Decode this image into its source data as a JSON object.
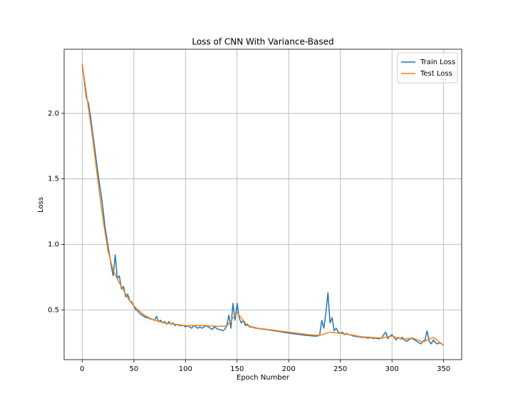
{
  "chart_data": {
    "type": "line",
    "title": "Loss of CNN With Variance-Based",
    "x_label": "Epoch Number",
    "y_label": "Loss",
    "xlim": [
      -17.5,
      367.5
    ],
    "ylim": [
      0.12,
      2.49
    ],
    "xticks": [
      0,
      50,
      100,
      150,
      200,
      250,
      300,
      350
    ],
    "yticks": [
      0.5,
      {
        "value": 1,
        "label": "1.0"
      },
      1.5,
      {
        "value": 2,
        "label": "2.0"
      }
    ],
    "grid": true,
    "legend": "upper right",
    "series": [
      {
        "name": "Train Loss",
        "color": "#1f77b4",
        "x": [
          0,
          2,
          4,
          6,
          8,
          10,
          12,
          14,
          16,
          18,
          20,
          22,
          24,
          26,
          28,
          30,
          32,
          34,
          36,
          38,
          40,
          42,
          44,
          46,
          48,
          50,
          52,
          54,
          56,
          58,
          60,
          62,
          64,
          66,
          68,
          70,
          72,
          74,
          76,
          78,
          80,
          82,
          84,
          86,
          88,
          90,
          92,
          94,
          96,
          98,
          100,
          102,
          104,
          106,
          108,
          110,
          112,
          114,
          116,
          118,
          120,
          122,
          124,
          126,
          128,
          130,
          132,
          134,
          136,
          138,
          140,
          142,
          144,
          146,
          148,
          150,
          152,
          154,
          156,
          158,
          160,
          162,
          164,
          166,
          168,
          170,
          172,
          174,
          176,
          178,
          180,
          182,
          184,
          186,
          188,
          190,
          192,
          194,
          196,
          198,
          200,
          202,
          204,
          206,
          208,
          210,
          212,
          214,
          216,
          218,
          220,
          222,
          224,
          226,
          228,
          230,
          232,
          234,
          236,
          238,
          240,
          242,
          244,
          246,
          248,
          250,
          252,
          254,
          256,
          258,
          260,
          262,
          264,
          266,
          268,
          270,
          272,
          274,
          276,
          278,
          280,
          282,
          284,
          286,
          288,
          290,
          292,
          294,
          296,
          298,
          300,
          302,
          304,
          306,
          308,
          310,
          312,
          314,
          316,
          318,
          320,
          322,
          324,
          326,
          328,
          330,
          332,
          334,
          336,
          338,
          340,
          342,
          344,
          346,
          348,
          350
        ],
        "values": [
          2.38,
          2.25,
          2.12,
          2.08,
          1.98,
          1.86,
          1.74,
          1.62,
          1.5,
          1.4,
          1.28,
          1.14,
          1.04,
          0.94,
          0.84,
          0.76,
          0.92,
          0.74,
          0.76,
          0.66,
          0.68,
          0.6,
          0.62,
          0.57,
          0.56,
          0.53,
          0.5,
          0.49,
          0.47,
          0.46,
          0.45,
          0.44,
          0.44,
          0.43,
          0.43,
          0.42,
          0.45,
          0.41,
          0.42,
          0.4,
          0.41,
          0.39,
          0.41,
          0.39,
          0.4,
          0.38,
          0.39,
          0.38,
          0.38,
          0.38,
          0.37,
          0.38,
          0.37,
          0.36,
          0.38,
          0.37,
          0.36,
          0.37,
          0.36,
          0.37,
          0.38,
          0.37,
          0.36,
          0.35,
          0.37,
          0.36,
          0.35,
          0.35,
          0.34,
          0.35,
          0.38,
          0.46,
          0.36,
          0.55,
          0.42,
          0.55,
          0.44,
          0.4,
          0.42,
          0.38,
          0.39,
          0.37,
          0.37,
          0.365,
          0.36,
          0.36,
          0.355,
          0.355,
          0.35,
          0.35,
          0.348,
          0.345,
          0.343,
          0.34,
          0.338,
          0.335,
          0.333,
          0.33,
          0.328,
          0.325,
          0.323,
          0.32,
          0.318,
          0.316,
          0.314,
          0.312,
          0.31,
          0.308,
          0.306,
          0.305,
          0.303,
          0.302,
          0.3,
          0.3,
          0.3,
          0.31,
          0.42,
          0.36,
          0.48,
          0.63,
          0.4,
          0.44,
          0.34,
          0.36,
          0.33,
          0.32,
          0.33,
          0.31,
          0.32,
          0.31,
          0.31,
          0.3,
          0.3,
          0.295,
          0.295,
          0.29,
          0.29,
          0.29,
          0.285,
          0.285,
          0.29,
          0.28,
          0.285,
          0.28,
          0.28,
          0.285,
          0.31,
          0.33,
          0.28,
          0.3,
          0.31,
          0.29,
          0.27,
          0.29,
          0.28,
          0.29,
          0.27,
          0.26,
          0.27,
          0.28,
          0.28,
          0.27,
          0.26,
          0.25,
          0.24,
          0.26,
          0.27,
          0.34,
          0.26,
          0.24,
          0.27,
          0.25,
          0.24,
          0.25,
          0.24,
          0.23
        ]
      },
      {
        "name": "Test Loss",
        "color": "#ff7f0e",
        "x": [
          0,
          5,
          10,
          15,
          20,
          25,
          30,
          35,
          40,
          45,
          50,
          60,
          70,
          80,
          90,
          100,
          110,
          120,
          130,
          140,
          150,
          160,
          170,
          180,
          190,
          200,
          210,
          220,
          230,
          240,
          250,
          260,
          270,
          280,
          290,
          300,
          310,
          320,
          330,
          340,
          350
        ],
        "values": [
          2.38,
          2.1,
          1.82,
          1.5,
          1.2,
          0.95,
          0.8,
          0.72,
          0.65,
          0.58,
          0.53,
          0.46,
          0.42,
          0.4,
          0.39,
          0.38,
          0.38,
          0.38,
          0.375,
          0.375,
          0.48,
          0.38,
          0.36,
          0.35,
          0.34,
          0.33,
          0.32,
          0.31,
          0.305,
          0.33,
          0.32,
          0.31,
          0.295,
          0.29,
          0.285,
          0.3,
          0.275,
          0.285,
          0.255,
          0.29,
          0.23
        ]
      }
    ]
  }
}
